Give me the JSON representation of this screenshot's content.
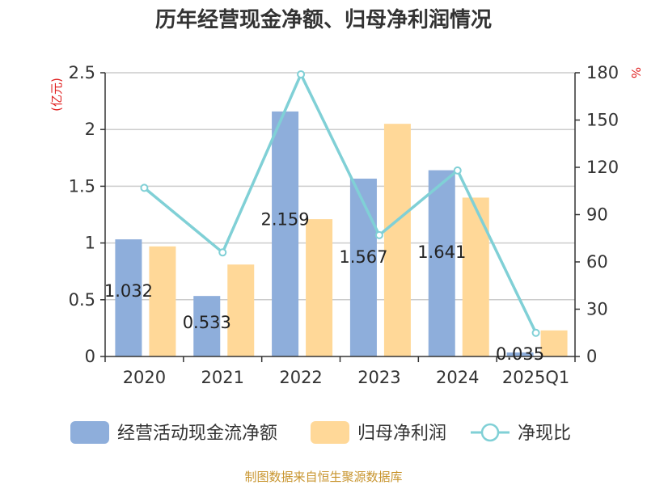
{
  "chart_data": {
    "type": "bar",
    "title": "历年经营现金净额、归母净利润情况",
    "categories": [
      "2020",
      "2021",
      "2022",
      "2023",
      "2024",
      "2025Q1"
    ],
    "series": [
      {
        "name": "经营活动现金流净额",
        "type": "bar",
        "axis": "left",
        "color": "#8eaedb",
        "values": [
          1.032,
          0.533,
          2.159,
          1.567,
          1.641,
          0.035
        ],
        "data_labels": [
          "1.032",
          "0.533",
          "2.159",
          "1.567",
          "1.641",
          "0.035"
        ]
      },
      {
        "name": "归母净利润",
        "type": "bar",
        "axis": "left",
        "color": "#ffd898",
        "values": [
          0.97,
          0.81,
          1.21,
          2.05,
          1.4,
          0.23
        ]
      },
      {
        "name": "净现比",
        "type": "line",
        "axis": "right",
        "color": "#80d0d6",
        "values": [
          107,
          66,
          179,
          77,
          118,
          15
        ]
      }
    ],
    "y_left": {
      "label": "(亿元)",
      "min": 0,
      "max": 2.5,
      "ticks": [
        0,
        0.5,
        1,
        1.5,
        2,
        2.5
      ],
      "tick_labels": [
        "0",
        "0.5",
        "1",
        "1.5",
        "2",
        "2.5"
      ]
    },
    "y_right": {
      "label": "%",
      "min": 0,
      "max": 180,
      "ticks": [
        0,
        30,
        60,
        90,
        120,
        150,
        180
      ],
      "tick_labels": [
        "0",
        "30",
        "60",
        "90",
        "120",
        "150",
        "180"
      ]
    },
    "grid": true,
    "legend_position": "bottom",
    "source": "制图数据来自恒生聚源数据库",
    "source_color": "#c8952f"
  }
}
